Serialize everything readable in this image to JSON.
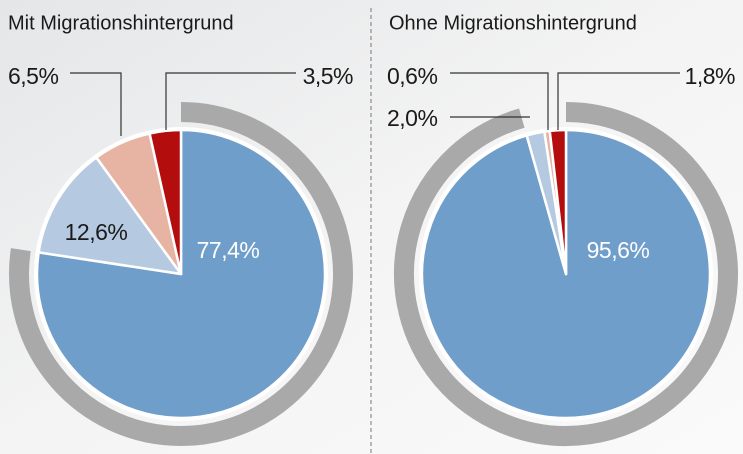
{
  "chart_data": [
    {
      "type": "pie",
      "title": "Mit Migrationshintergrund",
      "values": [
        77.4,
        12.6,
        6.5,
        3.5
      ],
      "value_labels": [
        "77,4%",
        "12,6%",
        "6,5%",
        "3,5%"
      ],
      "colors": [
        "#6f9ecb",
        "#b5c9e1",
        "#e7b4a4",
        "#b40d0d"
      ]
    },
    {
      "type": "pie",
      "title": "Ohne Migrationshintergrund",
      "values": [
        95.6,
        2.0,
        0.6,
        1.8
      ],
      "value_labels": [
        "95,6%",
        "2,0%",
        "0,6%",
        "1,8%"
      ],
      "colors": [
        "#6f9ecb",
        "#b5c9e1",
        "#e7b4a4",
        "#b40d0d"
      ]
    }
  ]
}
